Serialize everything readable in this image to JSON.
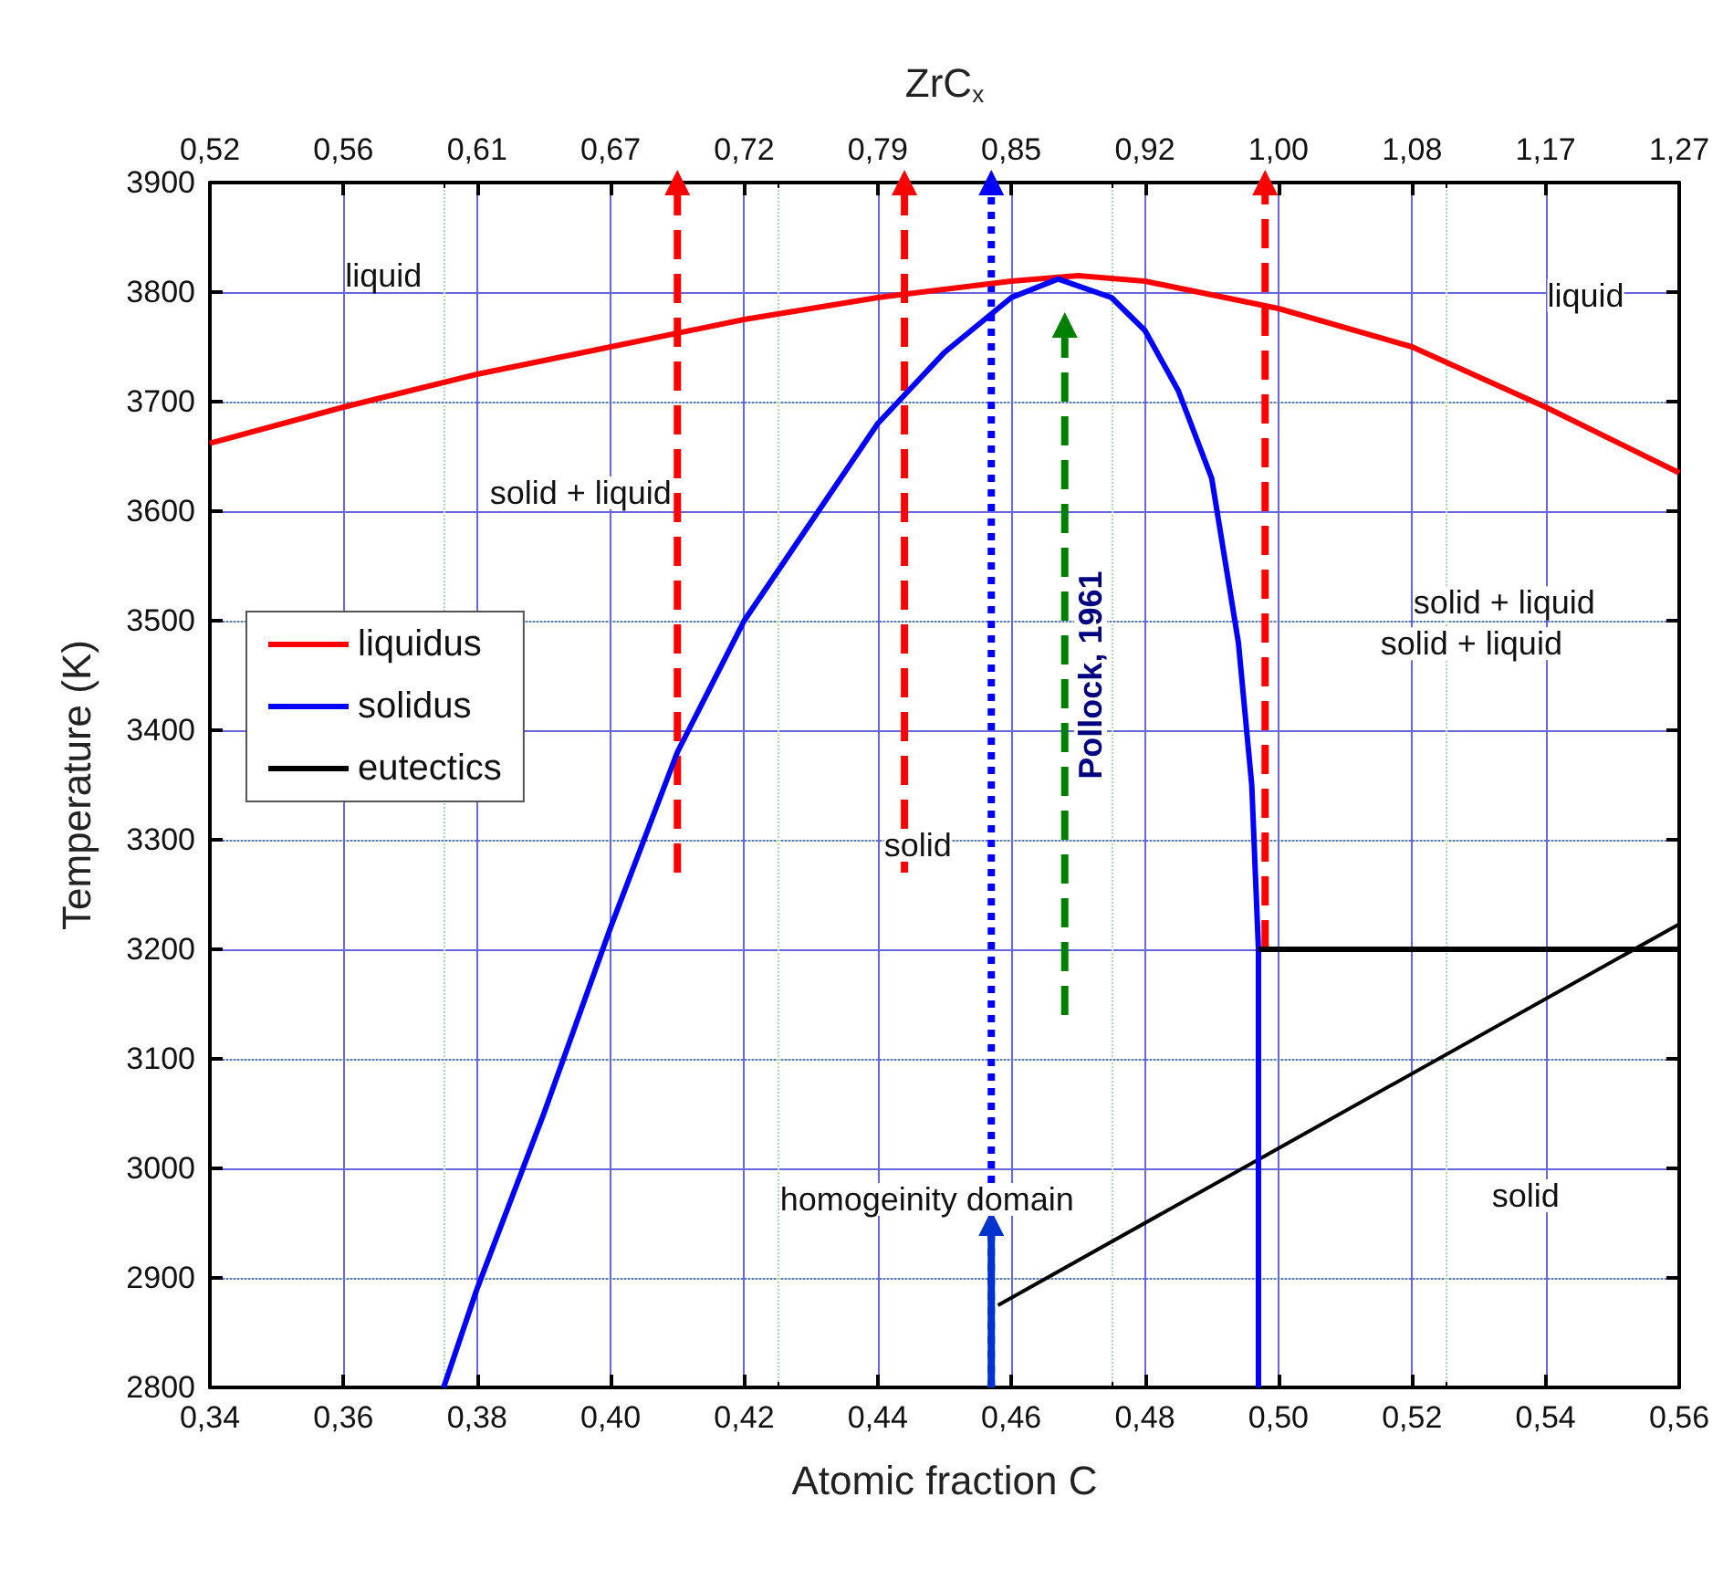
{
  "chart_data": {
    "type": "line",
    "xlabel": "Atomic fraction C",
    "ylabel": "Temperature (K)",
    "x2label": "ZrC$_{x}$",
    "xlim": [
      0.34,
      0.56
    ],
    "xticks": [
      {
        "value": 0.34,
        "label": "0,34"
      },
      {
        "value": 0.36,
        "label": "0,36"
      },
      {
        "value": 0.38,
        "label": "0,38"
      },
      {
        "value": 0.4,
        "label": "0,40"
      },
      {
        "value": 0.42,
        "label": "0,42"
      },
      {
        "value": 0.44,
        "label": "0,44"
      },
      {
        "value": 0.46,
        "label": "0,46"
      },
      {
        "value": 0.48,
        "label": "0,48"
      },
      {
        "value": 0.5,
        "label": "0,50"
      },
      {
        "value": 0.52,
        "label": "0,52"
      },
      {
        "value": 0.54,
        "label": "0,54"
      },
      {
        "value": 0.56,
        "label": "0,56"
      }
    ],
    "ylim": [
      2800,
      3900
    ],
    "yticks": [
      2800,
      2900,
      3000,
      3100,
      3200,
      3300,
      3400,
      3500,
      3600,
      3700,
      3800,
      3900
    ],
    "grid": true,
    "legend": "left",
    "marker": "none",
    "line_style": "solid",
    "series": [
      {
        "name": "liquidus",
        "color": "#ff0000",
        "x": [
          0.34,
          0.36,
          0.38,
          0.4,
          0.42,
          0.44,
          0.46,
          0.47,
          0.48,
          0.5,
          0.52,
          0.54,
          0.56
        ],
        "values": [
          3662,
          3695,
          3725,
          3750,
          3775,
          3795,
          3810,
          3815,
          3810,
          3785,
          3750,
          3695,
          3635
        ]
      },
      {
        "name": "solidus",
        "color": "#0000ff",
        "x": [
          0.375,
          0.38,
          0.39,
          0.4,
          0.41,
          0.42,
          0.43,
          0.44,
          0.45,
          0.46,
          0.467,
          0.475,
          0.48,
          0.485,
          0.49,
          0.494,
          0.496,
          0.497,
          0.497
        ],
        "values": [
          2800,
          2890,
          3050,
          3220,
          3380,
          3500,
          3590,
          3680,
          3745,
          3795,
          3812,
          3795,
          3765,
          3710,
          3630,
          3480,
          3350,
          3200,
          2800
        ]
      },
      {
        "name": "eutectics",
        "color": "#000000",
        "x": [
          0.497,
          0.56
        ],
        "values": [
          3200,
          3200
        ]
      },
      {
        "color": "#ff0000",
        "line_style": "dashed",
        "marker": "triangle",
        "x": [
          0.41,
          0.41
        ],
        "values": [
          3270,
          3900
        ]
      },
      {
        "color": "#ff0000",
        "line_style": "dashed",
        "marker": "triangle",
        "x": [
          0.444,
          0.444
        ],
        "values": [
          3270,
          3900
        ]
      },
      {
        "color": "#ff0000",
        "line_style": "dashed",
        "marker": "triangle",
        "x": [
          0.498,
          0.498
        ],
        "values": [
          3200,
          3900
        ]
      },
      {
        "color": "#0000ff",
        "line_style": "dotted",
        "marker": "triangle",
        "x": [
          0.457,
          0.457
        ],
        "values": [
          2800,
          3900
        ]
      },
      {
        "color": "#008000",
        "line_style": "dashed",
        "marker": "triangle",
        "x": [
          0.468,
          0.468
        ],
        "values": [
          3140,
          3770
        ]
      },
      {
        "color": "#0033cc",
        "marker": "triangle",
        "x": [
          0.457,
          0.457
        ],
        "values": [
          2800,
          2950
        ]
      },
      {
        "color": "#000000",
        "x": [
          0.458,
          0.56
        ],
        "values": [
          2875,
          3223
        ]
      }
    ],
    "annotations": [
      {
        "text": "liquid",
        "x": 0.366,
        "y": 3815
      },
      {
        "text": "liquid",
        "x": 0.546,
        "y": 3797
      },
      "solid + liquid",
      "solid + liquid",
      "solid + liquid",
      {
        "text": "solid",
        "x": 0.446,
        "y": 3295
      },
      "Pollock, 1961",
      "homogeinity domain",
      {
        "text": "solid",
        "x": 0.537,
        "y": 2975
      },
      "0,52",
      "0,56",
      "0,61",
      "0,67",
      "0,72",
      "0,79",
      "0,85",
      "0,92",
      "1,00",
      "1,08",
      "1,17",
      "1,27"
    ]
  }
}
